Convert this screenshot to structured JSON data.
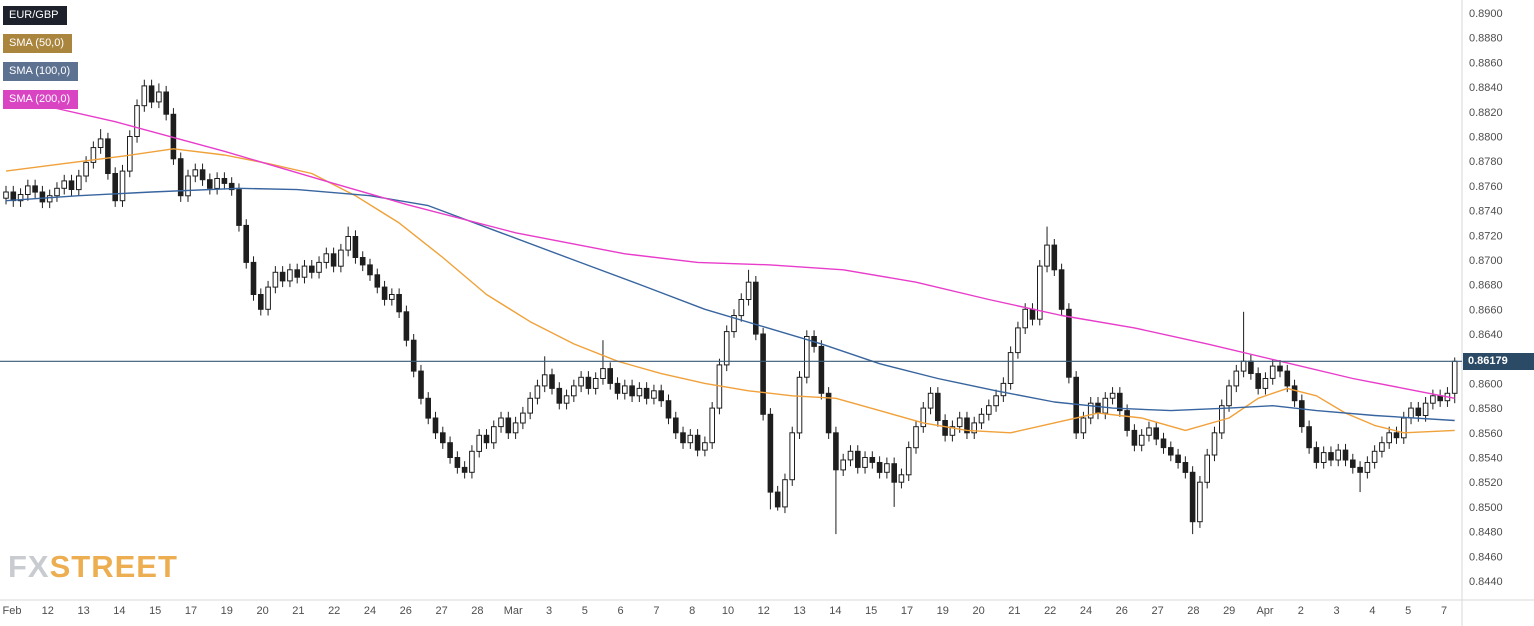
{
  "legend": {
    "items": [
      {
        "label": "EUR/GBP",
        "bg": "#1c212b",
        "fg": "#ffffff"
      },
      {
        "label": "SMA (50,0)",
        "bg": "#a9853e",
        "fg": "#ffffff"
      },
      {
        "label": "SMA (100,0)",
        "bg": "#5d7191",
        "fg": "#ffffff"
      },
      {
        "label": "SMA (200,0)",
        "bg": "#d944c2",
        "fg": "#ffffff"
      }
    ]
  },
  "logo": {
    "part1": "FX",
    "part2": "STREET",
    "fx_color": "#c3c6cb",
    "street_color": "#eaa63e"
  },
  "last_price": {
    "value": "0.86179",
    "badge_bg": "#2b4a66",
    "line_color": "#3a5a78"
  },
  "chart_data": {
    "type": "candlestick",
    "symbol": "EUR/GBP",
    "title": "EUR/GBP with SMA(50), SMA(100), SMA(200)",
    "last_price": 0.86179,
    "y_axis": {
      "min": 0.844,
      "max": 0.89,
      "step": 0.002,
      "ticks": [
        "0.8900",
        "0.8880",
        "0.8860",
        "0.8840",
        "0.8820",
        "0.8800",
        "0.8780",
        "0.8760",
        "0.8740",
        "0.8720",
        "0.8700",
        "0.8680",
        "0.8660",
        "0.8640",
        "0.8620",
        "0.8600",
        "0.8580",
        "0.8560",
        "0.8540",
        "0.8520",
        "0.8500",
        "0.8480",
        "0.8460",
        "0.8440"
      ]
    },
    "x_axis": {
      "labels": [
        "Feb",
        "12",
        "13",
        "14",
        "15",
        "17",
        "19",
        "20",
        "21",
        "22",
        "24",
        "26",
        "27",
        "28",
        "Mar",
        "3",
        "5",
        "6",
        "7",
        "8",
        "10",
        "12",
        "13",
        "14",
        "15",
        "17",
        "19",
        "20",
        "21",
        "22",
        "24",
        "26",
        "27",
        "28",
        "29",
        "Apr",
        "2",
        "3",
        "4",
        "5",
        "7"
      ]
    },
    "colors": {
      "up_fill": "#ffffff",
      "down_fill": "#1e1e1e",
      "stroke": "#1e1e1e"
    },
    "overlays": [
      {
        "name": "SMA (50,0)",
        "color": "#f0a13a",
        "anchors": [
          [
            0,
            0.8772
          ],
          [
            8,
            0.8778
          ],
          [
            16,
            0.8784
          ],
          [
            23,
            0.879
          ],
          [
            30,
            0.8785
          ],
          [
            36,
            0.8778
          ],
          [
            42,
            0.877
          ],
          [
            48,
            0.8752
          ],
          [
            54,
            0.873
          ],
          [
            60,
            0.8702
          ],
          [
            66,
            0.8672
          ],
          [
            72,
            0.865
          ],
          [
            78,
            0.8632
          ],
          [
            84,
            0.8618
          ],
          [
            90,
            0.8608
          ],
          [
            96,
            0.86
          ],
          [
            102,
            0.8594
          ],
          [
            108,
            0.859
          ],
          [
            114,
            0.8588
          ],
          [
            120,
            0.8578
          ],
          [
            126,
            0.8568
          ],
          [
            132,
            0.8562
          ],
          [
            138,
            0.856
          ],
          [
            144,
            0.8568
          ],
          [
            150,
            0.8576
          ],
          [
            156,
            0.8572
          ],
          [
            162,
            0.8562
          ],
          [
            168,
            0.8572
          ],
          [
            172,
            0.8588
          ],
          [
            176,
            0.8596
          ],
          [
            180,
            0.859
          ],
          [
            184,
            0.8576
          ],
          [
            188,
            0.8566
          ],
          [
            192,
            0.856
          ],
          [
            199,
            0.8562
          ]
        ]
      },
      {
        "name": "SMA (100,0)",
        "color": "#38659f",
        "anchors": [
          [
            0,
            0.8748
          ],
          [
            10,
            0.8752
          ],
          [
            20,
            0.8755
          ],
          [
            32,
            0.8758
          ],
          [
            40,
            0.8757
          ],
          [
            50,
            0.8752
          ],
          [
            58,
            0.8744
          ],
          [
            68,
            0.8722
          ],
          [
            78,
            0.87
          ],
          [
            88,
            0.8678
          ],
          [
            96,
            0.866
          ],
          [
            104,
            0.8646
          ],
          [
            112,
            0.8632
          ],
          [
            120,
            0.8616
          ],
          [
            128,
            0.8604
          ],
          [
            136,
            0.8594
          ],
          [
            144,
            0.8585
          ],
          [
            152,
            0.858
          ],
          [
            160,
            0.8578
          ],
          [
            168,
            0.858
          ],
          [
            174,
            0.8582
          ],
          [
            180,
            0.8578
          ],
          [
            188,
            0.8574
          ],
          [
            199,
            0.857
          ]
        ]
      },
      {
        "name": "SMA (200,0)",
        "color": "#e83ccb",
        "anchors": [
          [
            0,
            0.8832
          ],
          [
            15,
            0.8812
          ],
          [
            30,
            0.8788
          ],
          [
            45,
            0.8762
          ],
          [
            55,
            0.8745
          ],
          [
            70,
            0.8722
          ],
          [
            85,
            0.8705
          ],
          [
            95,
            0.8698
          ],
          [
            105,
            0.8696
          ],
          [
            115,
            0.8692
          ],
          [
            125,
            0.8682
          ],
          [
            135,
            0.8668
          ],
          [
            145,
            0.8655
          ],
          [
            155,
            0.8645
          ],
          [
            165,
            0.8632
          ],
          [
            175,
            0.8618
          ],
          [
            185,
            0.8604
          ],
          [
            192,
            0.8596
          ],
          [
            199,
            0.8588
          ]
        ]
      }
    ],
    "candles": {
      "open_first": 0.875,
      "wick_pad": 0.0005,
      "closes": [
        0.8755,
        0.8748,
        0.8753,
        0.876,
        0.8755,
        0.8747,
        0.8752,
        0.8758,
        0.8764,
        0.8757,
        0.8768,
        0.8779,
        0.8791,
        0.8798,
        0.877,
        0.8748,
        0.8772,
        0.88,
        0.8825,
        0.8841,
        0.8828,
        0.8836,
        0.8818,
        0.8782,
        0.8752,
        0.8768,
        0.8773,
        0.8765,
        0.8758,
        0.8766,
        0.8762,
        0.8757,
        0.8728,
        0.8698,
        0.8672,
        0.866,
        0.8678,
        0.869,
        0.8683,
        0.8692,
        0.8686,
        0.8695,
        0.869,
        0.8698,
        0.8705,
        0.8695,
        0.8708,
        0.8719,
        0.8702,
        0.8696,
        0.8688,
        0.8678,
        0.8668,
        0.8672,
        0.8658,
        0.8635,
        0.861,
        0.8588,
        0.8572,
        0.856,
        0.8552,
        0.854,
        0.8532,
        0.8528,
        0.8545,
        0.8558,
        0.8552,
        0.8565,
        0.8572,
        0.856,
        0.8568,
        0.8576,
        0.8588,
        0.8598,
        0.8607,
        0.8596,
        0.8584,
        0.859,
        0.8598,
        0.8605,
        0.8596,
        0.8604,
        0.8612,
        0.86,
        0.8592,
        0.8598,
        0.859,
        0.8596,
        0.8588,
        0.8594,
        0.8586,
        0.8572,
        0.856,
        0.8552,
        0.8558,
        0.8546,
        0.8552,
        0.858,
        0.8615,
        0.8642,
        0.8655,
        0.8668,
        0.8682,
        0.864,
        0.8575,
        0.8512,
        0.85,
        0.8522,
        0.856,
        0.8605,
        0.8638,
        0.863,
        0.8592,
        0.856,
        0.853,
        0.8538,
        0.8545,
        0.8532,
        0.854,
        0.8536,
        0.8528,
        0.8535,
        0.852,
        0.8526,
        0.8548,
        0.8565,
        0.858,
        0.8592,
        0.857,
        0.8558,
        0.8565,
        0.8572,
        0.856,
        0.8568,
        0.8575,
        0.8582,
        0.859,
        0.86,
        0.8625,
        0.8645,
        0.866,
        0.8652,
        0.8695,
        0.8712,
        0.8692,
        0.866,
        0.8605,
        0.856,
        0.8572,
        0.8584,
        0.8576,
        0.8588,
        0.8592,
        0.8578,
        0.8562,
        0.855,
        0.8558,
        0.8564,
        0.8555,
        0.8548,
        0.8542,
        0.8536,
        0.8528,
        0.8488,
        0.852,
        0.8542,
        0.856,
        0.8582,
        0.8598,
        0.861,
        0.8618,
        0.8608,
        0.8596,
        0.8604,
        0.8614,
        0.861,
        0.8598,
        0.8586,
        0.8565,
        0.8548,
        0.8536,
        0.8544,
        0.8538,
        0.8546,
        0.8538,
        0.8532,
        0.8528,
        0.8536,
        0.8545,
        0.8552,
        0.856,
        0.8556,
        0.8572,
        0.858,
        0.8574,
        0.8584,
        0.859,
        0.8586,
        0.8592,
        0.86179
      ],
      "wick_overrides": {
        "13": [
          0.8806,
          null
        ],
        "19": [
          0.8846,
          null
        ],
        "21": [
          0.8843,
          null
        ],
        "47": [
          0.8727,
          null
        ],
        "74": [
          0.8622,
          null
        ],
        "82": [
          0.8635,
          null
        ],
        "102": [
          0.8692,
          null
        ],
        "105": [
          null,
          0.8498
        ],
        "106": [
          null,
          0.8497
        ],
        "114": [
          null,
          0.8478
        ],
        "122": [
          null,
          0.85
        ],
        "143": [
          0.8727,
          null
        ],
        "163": [
          null,
          0.8478
        ],
        "170": [
          0.8658,
          null
        ],
        "186": [
          null,
          0.8512
        ],
        "199": [
          0.8621,
          0.8584
        ]
      }
    }
  }
}
